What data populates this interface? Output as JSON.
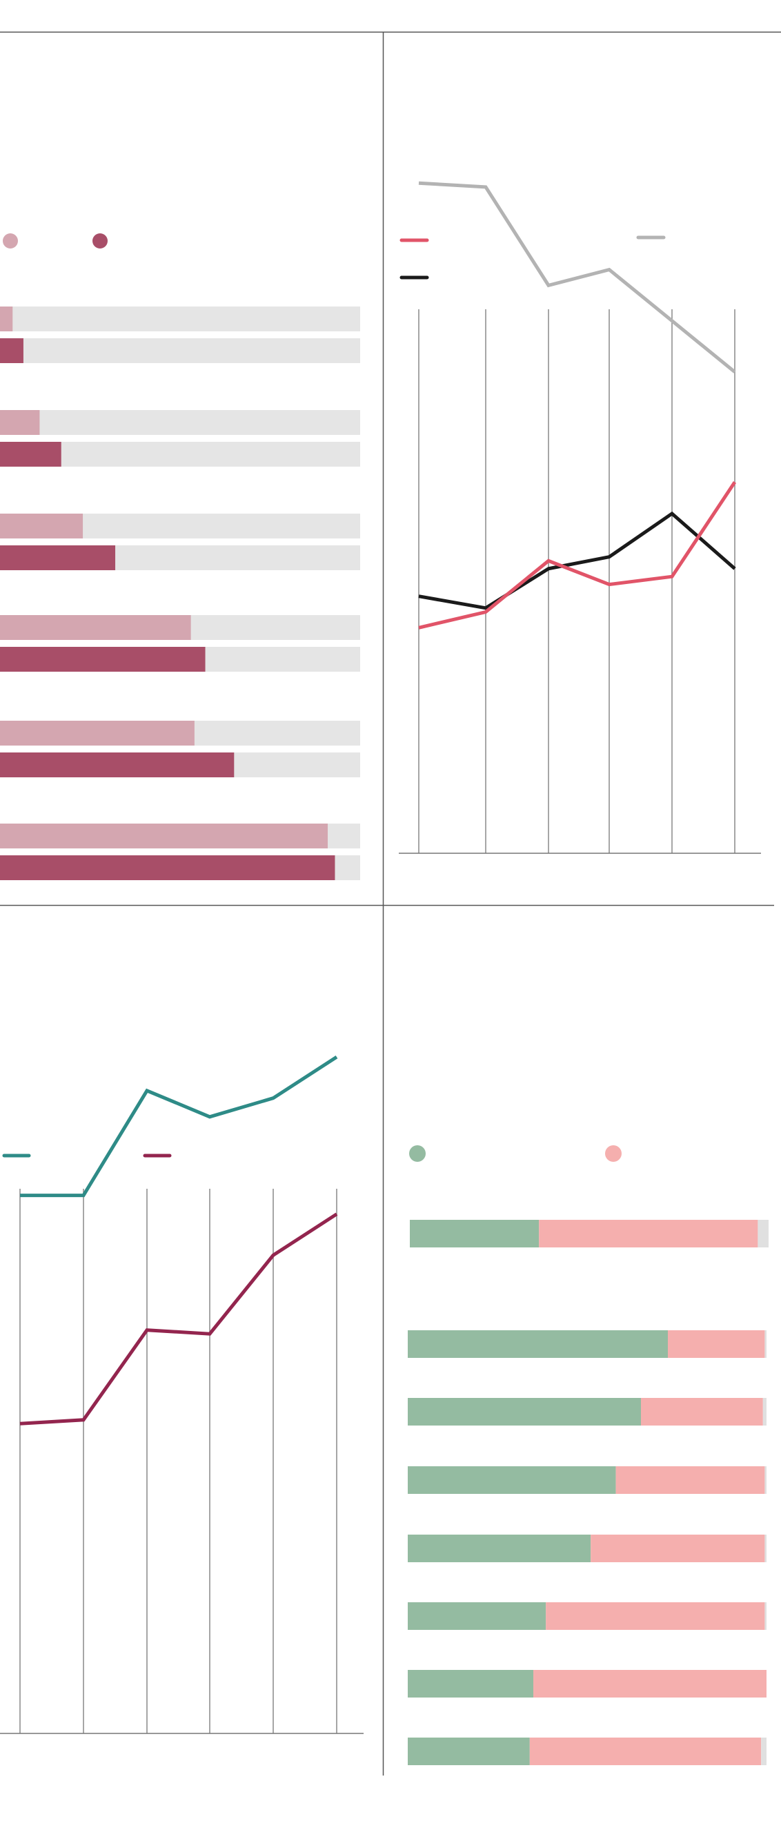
{
  "colors": {
    "rule": "#555555",
    "axis": "#777777",
    "grid": "#888888",
    "bar_track": "#e5e5e5",
    "pink_light": "#d4a6b0",
    "pink_dark": "#a84e68",
    "series_red": "#e15468",
    "series_gray": "#b3b3b3",
    "series_black": "#1a1a1a",
    "series_teal": "#2e8b87",
    "series_maroon": "#93254e",
    "green": "#94bba1",
    "salmon": "#f5afae",
    "remainder": "#e0e0e0"
  },
  "chart_data": [
    {
      "type": "bar",
      "panel": "top-left",
      "legend_placement": "top-left",
      "orientation": "horizontal",
      "grid": false,
      "xlim": [
        0,
        100
      ],
      "categories": [
        "",
        "",
        "",
        "",
        "",
        ""
      ],
      "series": [
        {
          "color_key": "pink_light",
          "values": [
            3.5,
            11,
            23,
            53,
            54,
            91
          ]
        },
        {
          "color_key": "pink_dark",
          "values": [
            6.5,
            17,
            32,
            57,
            65,
            93
          ]
        }
      ]
    },
    {
      "type": "line",
      "panel": "top-right",
      "legend_placement": "top",
      "grid": true,
      "x": [
        1,
        2,
        3,
        4,
        5,
        6
      ],
      "ylim": [
        0,
        100
      ],
      "series": [
        {
          "color_key": "series_gray",
          "values": [
            82,
            81.5,
            69,
            71,
            64.5,
            58
          ]
        },
        {
          "color_key": "series_black",
          "values": [
            29.5,
            28,
            33,
            34.5,
            40,
            33
          ]
        },
        {
          "color_key": "series_red",
          "values": [
            25.5,
            27.5,
            34,
            31,
            32,
            44
          ]
        }
      ]
    },
    {
      "type": "line",
      "panel": "bottom-left",
      "legend_placement": "top",
      "grid": true,
      "x": [
        1,
        2,
        3,
        4,
        5,
        6
      ],
      "ylim": [
        0,
        100
      ],
      "series": [
        {
          "color_key": "series_teal",
          "values": [
            69.5,
            69.5,
            83.5,
            80,
            82.5,
            88
          ]
        },
        {
          "color_key": "series_maroon",
          "values": [
            39,
            39.5,
            51.5,
            51,
            61.5,
            67
          ]
        }
      ]
    },
    {
      "type": "bar",
      "panel": "bottom-right",
      "legend_placement": "top",
      "orientation": "horizontal",
      "stacked": true,
      "grid": false,
      "xlim": [
        0,
        100
      ],
      "categories": [
        "",
        "",
        "",
        "",
        "",
        "",
        "",
        ""
      ],
      "series": [
        {
          "color_key": "green",
          "values": [
            36,
            72.5,
            65,
            58,
            51,
            38.5,
            35,
            34
          ]
        },
        {
          "color_key": "salmon",
          "values": [
            61,
            27,
            34,
            41.5,
            48.5,
            61,
            65,
            64.5
          ]
        },
        {
          "color_key": "remainder",
          "values": [
            3,
            0.5,
            1,
            0.5,
            0.5,
            0.5,
            0,
            1.5
          ]
        }
      ]
    }
  ]
}
